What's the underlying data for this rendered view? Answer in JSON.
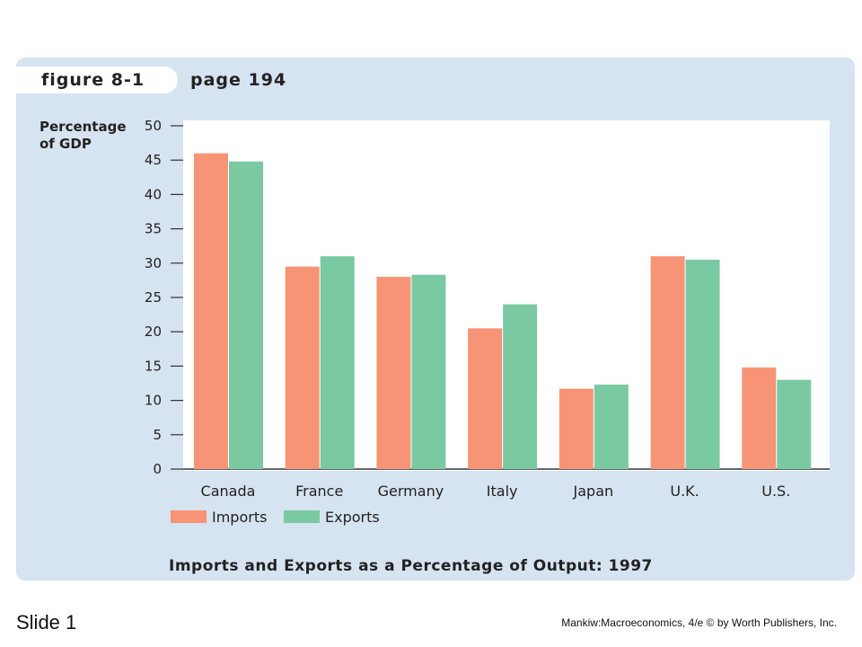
{
  "slide": {
    "figure_label": "figure 8-1",
    "page_label": "page 194",
    "slide_label": "Slide 1",
    "credit": "Mankiw:Macroeconomics, 4/e © by Worth Publishers, Inc."
  },
  "colors": {
    "imports": "#f79476",
    "exports": "#7ac9a3",
    "panel": "#d6e3f0",
    "plot_bg": "#ffffff"
  },
  "chart_data": {
    "type": "bar",
    "title": "Imports and Exports as a Percentage of Output: 1997",
    "ylabel": "Percentage of GDP",
    "xlabel": "",
    "categories": [
      "Canada",
      "France",
      "Germany",
      "Italy",
      "Japan",
      "U.K.",
      "U.S."
    ],
    "series": [
      {
        "name": "Imports",
        "values": [
          46,
          29.5,
          28,
          20.5,
          11.7,
          31,
          14.8
        ]
      },
      {
        "name": "Exports",
        "values": [
          44.8,
          31,
          28.3,
          24,
          12.3,
          30.5,
          13
        ]
      }
    ],
    "ylim": [
      0,
      50
    ],
    "yticks": [
      0,
      5,
      10,
      15,
      20,
      25,
      30,
      35,
      40,
      45,
      50
    ],
    "grid": false,
    "legend_position": "bottom-left"
  }
}
